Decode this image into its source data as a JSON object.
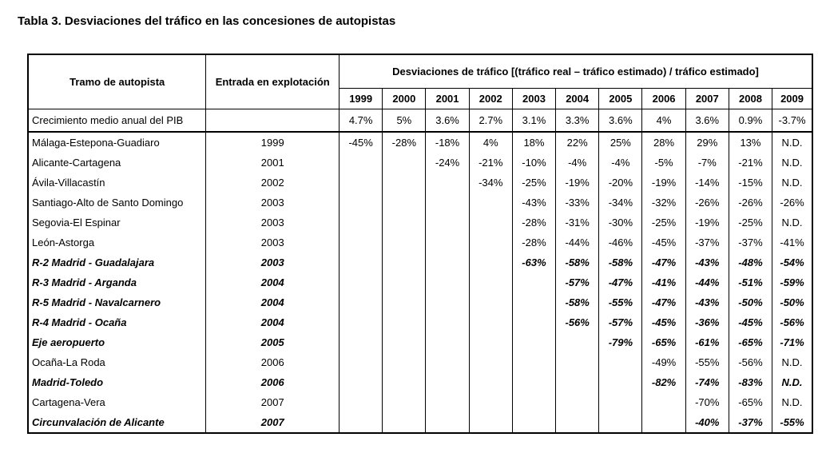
{
  "title": "Tabla 3. Desviaciones del tráfico en las concesiones de autopistas",
  "headers": {
    "tramo": "Tramo de autopista",
    "entrada": "Entrada en explotación",
    "desviaciones": "Desviaciones de tráfico [(tráfico real – tráfico estimado) / tráfico estimado]"
  },
  "years": [
    "1999",
    "2000",
    "2001",
    "2002",
    "2003",
    "2004",
    "2005",
    "2006",
    "2007",
    "2008",
    "2009"
  ],
  "pib": {
    "label": "Crecimiento medio anual del PIB",
    "values": [
      "4.7%",
      "5%",
      "3.6%",
      "2.7%",
      "3.1%",
      "3.3%",
      "3.6%",
      "4%",
      "3.6%",
      "0.9%",
      "-3.7%"
    ]
  },
  "rows": [
    {
      "name": "Málaga-Estepona-Guadiaro",
      "year": "1999",
      "bold": false,
      "values": [
        "-45%",
        "-28%",
        "-18%",
        "4%",
        "18%",
        "22%",
        "25%",
        "28%",
        "29%",
        "13%",
        "N.D."
      ]
    },
    {
      "name": "Alicante-Cartagena",
      "year": "2001",
      "bold": false,
      "values": [
        "",
        "",
        "-24%",
        "-21%",
        "-10%",
        "-4%",
        "-4%",
        "-5%",
        "-7%",
        "-21%",
        "N.D."
      ]
    },
    {
      "name": "Ávila-Villacastín",
      "year": "2002",
      "bold": false,
      "values": [
        "",
        "",
        "",
        "-34%",
        "-25%",
        "-19%",
        "-20%",
        "-19%",
        "-14%",
        "-15%",
        "N.D."
      ]
    },
    {
      "name": "Santiago-Alto de Santo Domingo",
      "year": "2003",
      "bold": false,
      "values": [
        "",
        "",
        "",
        "",
        "-43%",
        "-33%",
        "-34%",
        "-32%",
        "-26%",
        "-26%",
        "-26%"
      ]
    },
    {
      "name": "Segovia-El Espinar",
      "year": "2003",
      "bold": false,
      "values": [
        "",
        "",
        "",
        "",
        "-28%",
        "-31%",
        "-30%",
        "-25%",
        "-19%",
        "-25%",
        "N.D."
      ]
    },
    {
      "name": "León-Astorga",
      "year": "2003",
      "bold": false,
      "values": [
        "",
        "",
        "",
        "",
        "-28%",
        "-44%",
        "-46%",
        "-45%",
        "-37%",
        "-37%",
        "-41%"
      ]
    },
    {
      "name": "R-2 Madrid - Guadalajara",
      "year": "2003",
      "bold": true,
      "values": [
        "",
        "",
        "",
        "",
        "-63%",
        "-58%",
        "-58%",
        "-47%",
        "-43%",
        "-48%",
        "-54%"
      ]
    },
    {
      "name": "R-3 Madrid - Arganda",
      "year": "2004",
      "bold": true,
      "values": [
        "",
        "",
        "",
        "",
        "",
        "-57%",
        "-47%",
        "-41%",
        "-44%",
        "-51%",
        "-59%"
      ]
    },
    {
      "name": "R-5 Madrid - Navalcarnero",
      "year": "2004",
      "bold": true,
      "values": [
        "",
        "",
        "",
        "",
        "",
        "-58%",
        "-55%",
        "-47%",
        "-43%",
        "-50%",
        "-50%"
      ]
    },
    {
      "name": "R-4 Madrid - Ocaña",
      "year": "2004",
      "bold": true,
      "values": [
        "",
        "",
        "",
        "",
        "",
        "-56%",
        "-57%",
        "-45%",
        "-36%",
        "-45%",
        "-56%"
      ]
    },
    {
      "name": "Eje aeropuerto",
      "year": "2005",
      "bold": true,
      "values": [
        "",
        "",
        "",
        "",
        "",
        "",
        "-79%",
        "-65%",
        "-61%",
        "-65%",
        "-71%"
      ]
    },
    {
      "name": "Ocaña-La Roda",
      "year": "2006",
      "bold": false,
      "values": [
        "",
        "",
        "",
        "",
        "",
        "",
        "",
        "-49%",
        "-55%",
        "-56%",
        "N.D."
      ]
    },
    {
      "name": "Madrid-Toledo",
      "year": "2006",
      "bold": true,
      "values": [
        "",
        "",
        "",
        "",
        "",
        "",
        "",
        "-82%",
        "-74%",
        "-83%",
        "N.D."
      ]
    },
    {
      "name": "Cartagena-Vera",
      "year": "2007",
      "bold": false,
      "values": [
        "",
        "",
        "",
        "",
        "",
        "",
        "",
        "",
        "-70%",
        "-65%",
        "N.D."
      ]
    },
    {
      "name": "Circunvalación de Alicante",
      "year": "2007",
      "bold": true,
      "values": [
        "",
        "",
        "",
        "",
        "",
        "",
        "",
        "",
        "-40%",
        "-37%",
        "-55%"
      ]
    }
  ]
}
